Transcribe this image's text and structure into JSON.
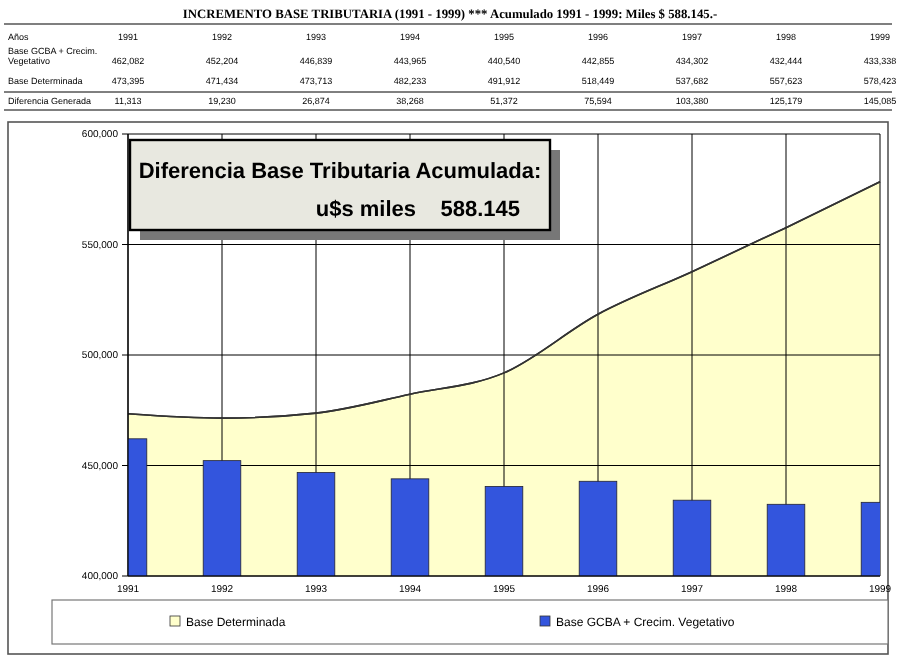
{
  "chart_data": {
    "type": "bar",
    "title": "INCREMENTO BASE TRIBUTARIA (1991 - 1999) *** Acumulado 1991 - 1999: Miles $ 588.145.-",
    "categories": [
      "1991",
      "1992",
      "1993",
      "1994",
      "1995",
      "1996",
      "1997",
      "1998",
      "1999"
    ],
    "series": [
      {
        "name": "Base Determinada",
        "type": "area",
        "color": "#ffffcc",
        "values": [
          473395,
          471434,
          473713,
          482233,
          491912,
          518449,
          537682,
          557623,
          578423
        ],
        "value_labels": [
          "473,395",
          "471,434",
          "473,713",
          "482,233",
          "491,912",
          "518,449",
          "537,682",
          "557,623",
          "578,423"
        ]
      },
      {
        "name": "Base GCBA + Crecim. Vegetativo",
        "color": "#3355dd",
        "values": [
          462082,
          452204,
          446839,
          443965,
          440540,
          442855,
          434302,
          432444,
          433338
        ],
        "value_labels": [
          "462,082",
          "452,204",
          "446,839",
          "443,965",
          "440,540",
          "442,855",
          "434,302",
          "432,444",
          "433,338"
        ]
      }
    ],
    "ylim": [
      400000,
      600000
    ],
    "yticks": [
      {
        "value": 400000,
        "label": "400,000"
      },
      {
        "value": 450000,
        "label": "450,000"
      },
      {
        "value": 500000,
        "label": "500,000"
      },
      {
        "value": 550000,
        "label": "550,000"
      },
      {
        "value": 600000,
        "label": "600,000"
      }
    ],
    "grid": true,
    "legend": "bottom",
    "annotations": [
      "Diferencia Base Tributaria Acumulada:",
      "u$s miles    588.145",
      "Años",
      "Diferencia Generada",
      "11,313",
      "19,230",
      "26,874",
      "38,268",
      "51,372",
      "75,594",
      "103,380",
      "125,179",
      "145,085"
    ]
  }
}
